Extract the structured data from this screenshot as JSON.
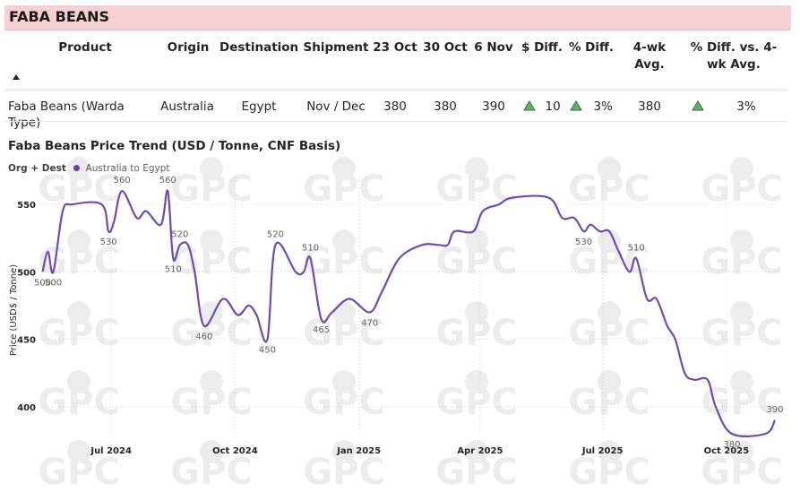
{
  "section_title": "FABA BEANS",
  "table": {
    "headers": {
      "product": "Product",
      "origin": "Origin",
      "destination": "Destination",
      "shipment": "Shipment",
      "d1": "23 Oct",
      "d2": "30 Oct",
      "d3": "6 Nov",
      "diff_usd": "$ Diff.",
      "diff_pct": "% Diff.",
      "avg4_l1": "4-wk",
      "avg4_l2": "Avg.",
      "diff_avg_l1": "% Diff. vs. 4-",
      "diff_avg_l2": "wk Avg."
    },
    "row": {
      "product": "Faba Beans (Warda Type)",
      "origin": "Australia",
      "destination": "Egypt",
      "shipment": "Nov / Dec",
      "d1": "380",
      "d2": "380",
      "d3": "390",
      "diff_usd": "10",
      "diff_pct": "3%",
      "avg4": "380",
      "diff_avg": "3%"
    },
    "up_color": "#5fb36b"
  },
  "chart_data": {
    "type": "line",
    "title": "Faba Beans Price Trend (USD / Tonne, CNF Basis)",
    "legend_title": "Org + Dest",
    "ylabel": "Price (USD$ / Tonne)",
    "xlabel": "",
    "ylim": [
      380,
      570
    ],
    "yticks": [
      400,
      450,
      500,
      550
    ],
    "x_ticks": [
      {
        "label": "Jul 2024",
        "date": "2024-07-01"
      },
      {
        "label": "Oct 2024",
        "date": "2024-10-01"
      },
      {
        "label": "Jan 2025",
        "date": "2025-01-01"
      },
      {
        "label": "Apr 2025",
        "date": "2025-04-01"
      },
      {
        "label": "Jul 2025",
        "date": "2025-07-01"
      },
      {
        "label": "Oct 2025",
        "date": "2025-10-01"
      }
    ],
    "xlim": [
      "2024-05-10",
      "2025-11-08"
    ],
    "grid": true,
    "watermark": "GPC",
    "series": [
      {
        "name": "Australia to Egypt",
        "color": "#6f49b8",
        "points": [
          {
            "x": "2024-05-11",
            "y": 500,
            "label": "500"
          },
          {
            "x": "2024-05-15",
            "y": 515
          },
          {
            "x": "2024-05-19",
            "y": 500,
            "label": "500"
          },
          {
            "x": "2024-05-26",
            "y": 545
          },
          {
            "x": "2024-06-02",
            "y": 550
          },
          {
            "x": "2024-06-24",
            "y": 550
          },
          {
            "x": "2024-06-29",
            "y": 530,
            "label": "530"
          },
          {
            "x": "2024-07-03",
            "y": 537
          },
          {
            "x": "2024-07-09",
            "y": 560,
            "label": "560"
          },
          {
            "x": "2024-07-20",
            "y": 540
          },
          {
            "x": "2024-07-27",
            "y": 545
          },
          {
            "x": "2024-08-07",
            "y": 535
          },
          {
            "x": "2024-08-12",
            "y": 560,
            "label": "560"
          },
          {
            "x": "2024-08-16",
            "y": 510,
            "label": "510"
          },
          {
            "x": "2024-08-21",
            "y": 520,
            "label": "520"
          },
          {
            "x": "2024-08-27",
            "y": 520
          },
          {
            "x": "2024-09-01",
            "y": 500
          },
          {
            "x": "2024-09-08",
            "y": 460,
            "label": "460"
          },
          {
            "x": "2024-09-22",
            "y": 480
          },
          {
            "x": "2024-10-03",
            "y": 468
          },
          {
            "x": "2024-10-11",
            "y": 475
          },
          {
            "x": "2024-10-17",
            "y": 468
          },
          {
            "x": "2024-10-25",
            "y": 450,
            "label": "450"
          },
          {
            "x": "2024-10-31",
            "y": 520,
            "label": "520"
          },
          {
            "x": "2024-11-15",
            "y": 500
          },
          {
            "x": "2024-11-21",
            "y": 500
          },
          {
            "x": "2024-11-26",
            "y": 510,
            "label": "510"
          },
          {
            "x": "2024-12-04",
            "y": 465,
            "label": "465"
          },
          {
            "x": "2024-12-12",
            "y": 470
          },
          {
            "x": "2024-12-25",
            "y": 480
          },
          {
            "x": "2025-01-09",
            "y": 470,
            "label": "470"
          },
          {
            "x": "2025-01-18",
            "y": 485
          },
          {
            "x": "2025-01-31",
            "y": 510
          },
          {
            "x": "2025-02-17",
            "y": 520
          },
          {
            "x": "2025-03-01",
            "y": 520
          },
          {
            "x": "2025-03-08",
            "y": 520
          },
          {
            "x": "2025-03-13",
            "y": 530
          },
          {
            "x": "2025-03-27",
            "y": 530
          },
          {
            "x": "2025-04-03",
            "y": 545
          },
          {
            "x": "2025-04-15",
            "y": 550
          },
          {
            "x": "2025-04-25",
            "y": 555
          },
          {
            "x": "2025-05-22",
            "y": 555
          },
          {
            "x": "2025-06-01",
            "y": 540
          },
          {
            "x": "2025-06-10",
            "y": 540
          },
          {
            "x": "2025-06-17",
            "y": 530,
            "label": "530"
          },
          {
            "x": "2025-06-22",
            "y": 535
          },
          {
            "x": "2025-06-29",
            "y": 530
          },
          {
            "x": "2025-07-06",
            "y": 530
          },
          {
            "x": "2025-07-13",
            "y": 515
          },
          {
            "x": "2025-07-21",
            "y": 500
          },
          {
            "x": "2025-07-26",
            "y": 510,
            "label": "510"
          },
          {
            "x": "2025-08-03",
            "y": 480
          },
          {
            "x": "2025-08-10",
            "y": 480
          },
          {
            "x": "2025-08-18",
            "y": 460
          },
          {
            "x": "2025-08-24",
            "y": 450
          },
          {
            "x": "2025-08-31",
            "y": 425
          },
          {
            "x": "2025-09-07",
            "y": 420
          },
          {
            "x": "2025-09-17",
            "y": 420
          },
          {
            "x": "2025-09-23",
            "y": 400
          },
          {
            "x": "2025-10-05",
            "y": 380,
            "label": "380"
          },
          {
            "x": "2025-10-30",
            "y": 380
          },
          {
            "x": "2025-11-06",
            "y": 390,
            "label": "390"
          }
        ]
      }
    ]
  }
}
